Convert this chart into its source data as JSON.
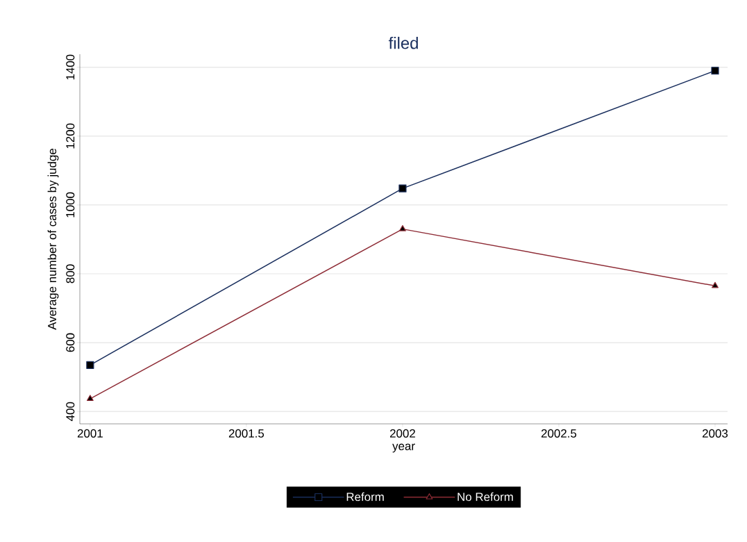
{
  "chart_data": {
    "type": "line",
    "title": "filed",
    "xlabel": "year",
    "ylabel": "Average number of cases by judge",
    "x": [
      2001,
      2002,
      2003
    ],
    "series": [
      {
        "name": "Reform",
        "color": "#1a2f5e",
        "marker": "square",
        "values": [
          535,
          1048,
          1390
        ]
      },
      {
        "name": "No Reform",
        "color": "#8e2c36",
        "marker": "triangle",
        "values": [
          437,
          930,
          765
        ]
      }
    ],
    "xlim": [
      2000.967,
      2003.04
    ],
    "ylim": [
      364,
      1438
    ],
    "xticks": [
      2001,
      2001.5,
      2002,
      2002.5,
      2003
    ],
    "yticks": [
      400,
      600,
      800,
      1000,
      1200,
      1400
    ],
    "grid": "y",
    "legend": "bottom",
    "line_style": "solid"
  }
}
